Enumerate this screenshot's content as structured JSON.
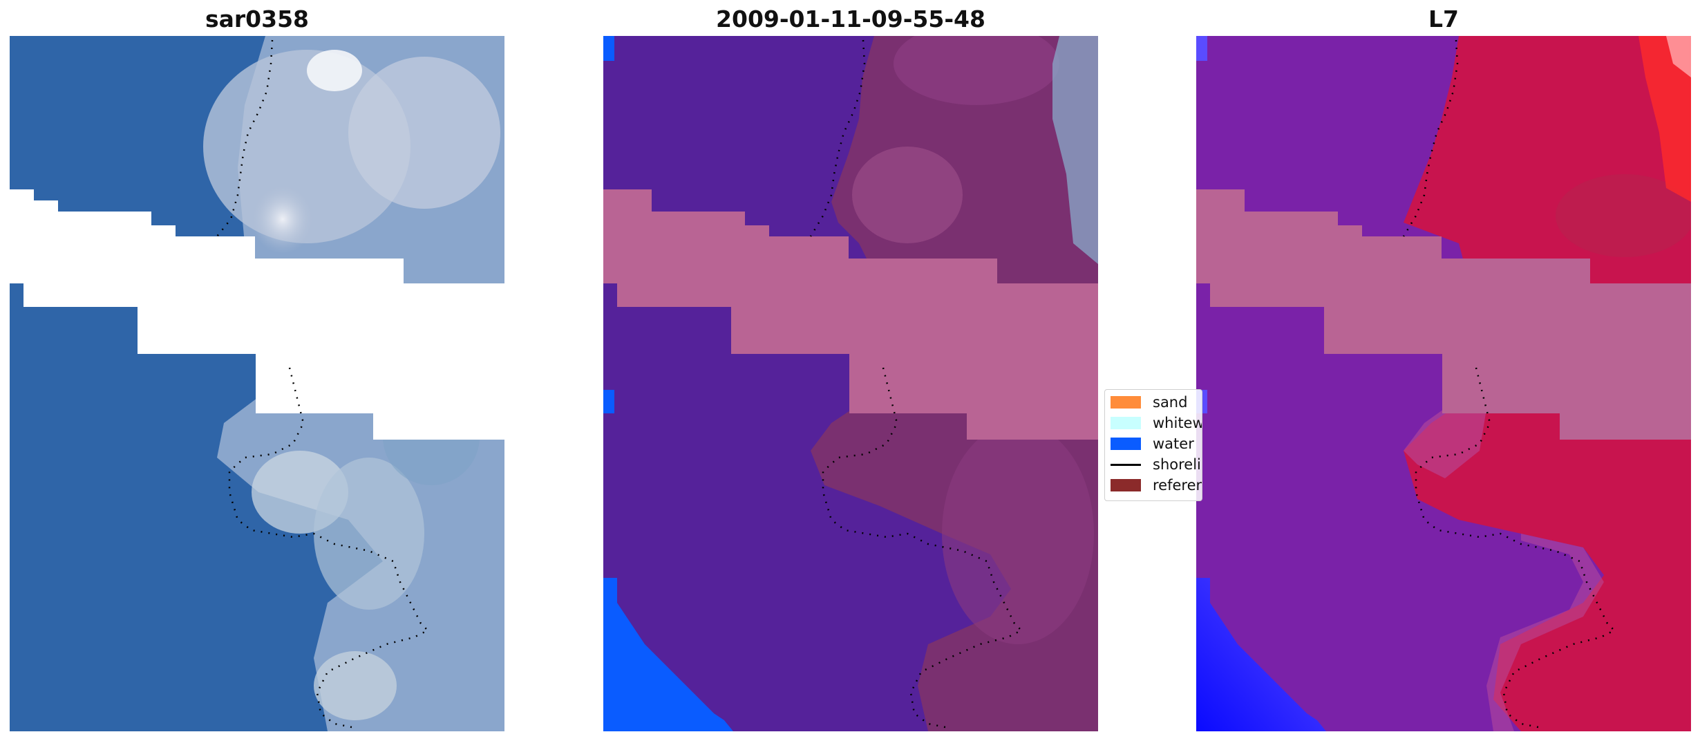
{
  "panels": [
    {
      "title": "sar0358"
    },
    {
      "title": "2009-01-11-09-55-48"
    },
    {
      "title": "L7"
    }
  ],
  "legend": {
    "items": [
      {
        "label": "sand",
        "color": "#ff8c3a",
        "kind": "patch"
      },
      {
        "label": "whitewater",
        "color": "#c8ffff",
        "kind": "patch"
      },
      {
        "label": "water",
        "color": "#0a5cff",
        "kind": "patch"
      },
      {
        "label": "shoreline",
        "color": "#000000",
        "kind": "line"
      },
      {
        "label": "reference",
        "color": "#8b2a2a",
        "kind": "patch"
      }
    ]
  },
  "colors": {
    "rgb_water": "#2f65a8",
    "rgb_land": "#9fb4cc",
    "class_water": "#55229a",
    "class_land": "#7a3070",
    "class_band": "#b96494",
    "class_edge_water": "#0a5cff",
    "index_water": "#7a22a8",
    "index_land": "#c8144e",
    "index_band": "#b96494",
    "index_edge": "#1e30ff"
  }
}
